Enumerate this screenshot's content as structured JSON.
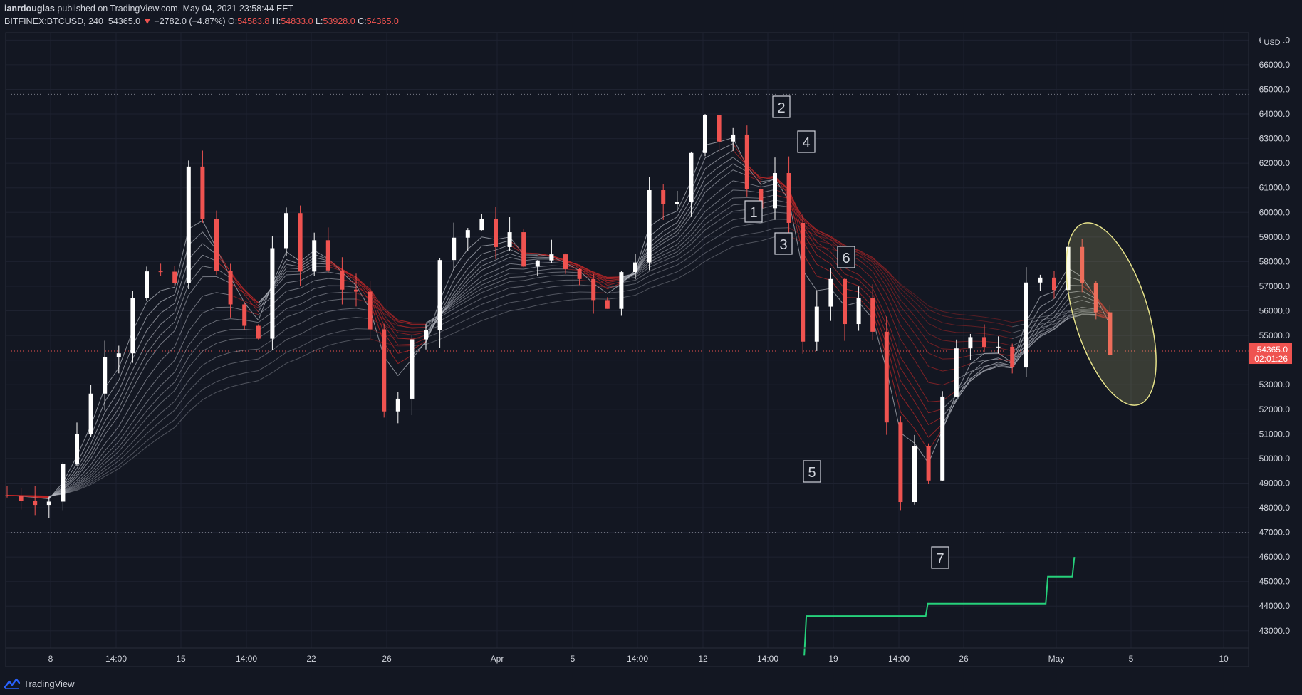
{
  "header": {
    "author": "ianrdouglas",
    "published_text": "published on TradingView.com, May 04, 2021 23:58:44 EET",
    "symbol": "BITFINEX:BTCUSD, 240",
    "last": "54365.0",
    "change": "−2782.0 (−4.87%)",
    "o_label": "O:",
    "o_value": "54583.8",
    "h_label": "H:",
    "h_value": "54833.0",
    "l_label": "L:",
    "l_value": "53928.0",
    "c_label": "C:",
    "c_value": "54365.0"
  },
  "footer": {
    "brand": "TradingView"
  },
  "chart_data": {
    "type": "candlestick",
    "currency_label": "USD",
    "ylim": [
      42300,
      67300
    ],
    "y_ticks": [
      "43000.0",
      "44000.0",
      "45000.0",
      "46000.0",
      "47000.0",
      "48000.0",
      "49000.0",
      "50000.0",
      "51000.0",
      "52000.0",
      "53000.0",
      "54000.0",
      "55000.0",
      "56000.0",
      "57000.0",
      "58000.0",
      "59000.0",
      "60000.0",
      "61000.0",
      "62000.0",
      "63000.0",
      "64000.0",
      "65000.0",
      "66000.0",
      "67000.0"
    ],
    "x_ticks": [
      "8",
      "14:00",
      "15",
      "14:00",
      "22",
      "26",
      "Apr",
      "5",
      "14:00",
      "12",
      "14:00",
      "19",
      "14:00",
      "26",
      "May",
      "5",
      "10"
    ],
    "last_price": {
      "value": 54365.0,
      "label": "54365.0",
      "countdown": "02:01:26"
    },
    "horizontal_levels": [
      64800,
      47000
    ],
    "price_path": [
      [
        0,
        48500
      ],
      [
        3,
        48300
      ],
      [
        4,
        49700
      ],
      [
        6,
        52600
      ],
      [
        7,
        54400
      ],
      [
        8,
        54500
      ],
      [
        9,
        56700
      ],
      [
        10,
        57500
      ],
      [
        12,
        57100
      ],
      [
        13,
        61700
      ],
      [
        14,
        60000
      ],
      [
        15,
        57400
      ],
      [
        16,
        56200
      ],
      [
        17,
        55300
      ],
      [
        18,
        54900
      ],
      [
        19,
        58600
      ],
      [
        20,
        59700
      ],
      [
        21,
        57600
      ],
      [
        22,
        58900
      ],
      [
        23,
        57800
      ],
      [
        24,
        57000
      ],
      [
        25,
        56500
      ],
      [
        26,
        55100
      ],
      [
        27,
        52200
      ],
      [
        28,
        52600
      ],
      [
        29,
        54700
      ],
      [
        30,
        55500
      ],
      [
        31,
        58100
      ],
      [
        32,
        59000
      ],
      [
        33,
        59300
      ],
      [
        34,
        59500
      ],
      [
        35,
        58800
      ],
      [
        36,
        59100
      ],
      [
        37,
        57600
      ],
      [
        38,
        58300
      ],
      [
        39,
        58100
      ],
      [
        40,
        57700
      ],
      [
        41,
        57300
      ],
      [
        42,
        56600
      ],
      [
        43,
        56300
      ],
      [
        44,
        57500
      ],
      [
        45,
        58200
      ],
      [
        46,
        61200
      ],
      [
        47,
        60200
      ],
      [
        48,
        60300
      ],
      [
        49,
        62500
      ],
      [
        50,
        64200
      ],
      [
        51,
        63000
      ],
      [
        52,
        63200
      ],
      [
        53,
        60700
      ],
      [
        54,
        60400
      ],
      [
        55,
        61600
      ],
      [
        56,
        59600
      ],
      [
        57,
        54800
      ],
      [
        58,
        56000
      ],
      [
        59,
        57000
      ],
      [
        60,
        55500
      ],
      [
        61,
        56500
      ],
      [
        62,
        55000
      ],
      [
        63,
        51500
      ],
      [
        64,
        48500
      ],
      [
        65,
        50200
      ],
      [
        66,
        49000
      ],
      [
        67,
        52500
      ],
      [
        68,
        54200
      ],
      [
        69,
        55000
      ],
      [
        70,
        54700
      ],
      [
        71,
        54300
      ],
      [
        72,
        53500
      ],
      [
        73,
        57200
      ],
      [
        74,
        57600
      ],
      [
        75,
        57000
      ],
      [
        76,
        58700
      ],
      [
        77,
        57000
      ],
      [
        78,
        55700
      ],
      [
        79,
        54365
      ]
    ],
    "indicator_line": {
      "color": "#26d17b",
      "path": [
        [
          57.1,
          42000
        ],
        [
          57.25,
          43600
        ],
        [
          65.8,
          43600
        ],
        [
          65.95,
          44100
        ],
        [
          74.4,
          44100
        ],
        [
          74.55,
          45200
        ],
        [
          76.3,
          45200
        ],
        [
          76.45,
          46000
        ]
      ]
    },
    "annotations": [
      "1",
      "2",
      "3",
      "4",
      "5",
      "6",
      "7"
    ],
    "colors": {
      "background": "#131722",
      "bull": "#ffffff",
      "bear": "#ef5350",
      "ribbon_up": "#b2b5be",
      "ribbon_down": "#c62828",
      "indicator": "#26d17b",
      "highlight_ellipse": "#e6e28a",
      "price_label_bg": "#ef5350"
    }
  }
}
